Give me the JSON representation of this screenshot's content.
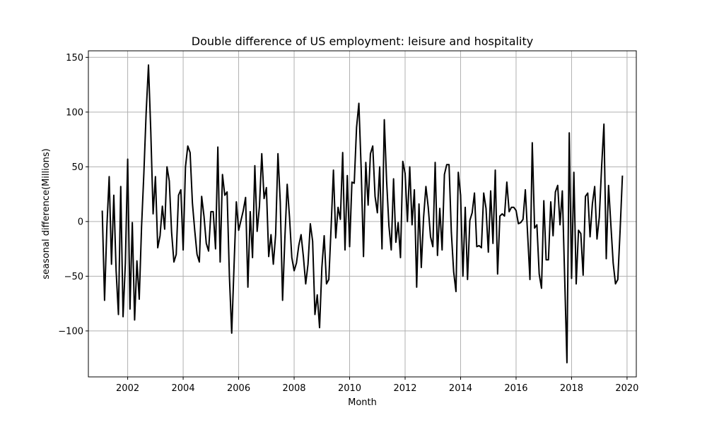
{
  "chart_data": {
    "type": "line",
    "title": "Double difference of US employment: leisure and hospitality",
    "xlabel": "Month",
    "ylabel": "seasonal difference(Millions)",
    "xlim": [
      "2000-08-01",
      "2020-05-01"
    ],
    "ylim": [
      -142,
      156
    ],
    "x_ticks": [
      "2002",
      "2004",
      "2006",
      "2008",
      "2010",
      "2012",
      "2014",
      "2016",
      "2018",
      "2020"
    ],
    "y_ticks": [
      150,
      100,
      50,
      0,
      -50,
      -100
    ],
    "grid": true,
    "line_color": "#000000",
    "series": [
      {
        "x_start": "2001-02",
        "x_step": "1 month",
        "values": [
          10,
          -72,
          -5,
          41,
          -39,
          24,
          -45,
          -85,
          32,
          -87,
          -38,
          57,
          -80,
          -1,
          -90,
          -36,
          -71,
          -5,
          44,
          100,
          143,
          82,
          7,
          41,
          -24,
          -13,
          14,
          -7,
          50,
          37,
          -10,
          -37,
          -30,
          24,
          29,
          -26,
          50,
          69,
          63,
          17,
          -8,
          -30,
          -37,
          23,
          5,
          -20,
          -27,
          9,
          9,
          -25,
          68,
          -37,
          43,
          24,
          27,
          -50,
          -102,
          -41,
          18,
          -8,
          1,
          10,
          22,
          -60,
          9,
          -33,
          51,
          -9,
          14,
          62,
          21,
          31,
          -32,
          -12,
          -39,
          -12,
          62,
          18,
          -72,
          -15,
          34,
          4,
          -33,
          -45,
          -38,
          -22,
          -12,
          -32,
          -57,
          -39,
          -2,
          -18,
          -85,
          -67,
          -97,
          -42,
          -13,
          -57,
          -53,
          -5,
          47,
          -15,
          13,
          2,
          63,
          -26,
          42,
          -23,
          36,
          35,
          86,
          108,
          48,
          -32,
          54,
          15,
          62,
          69,
          23,
          8,
          50,
          -25,
          93,
          37,
          -4,
          -26,
          39,
          -19,
          -1,
          -33,
          55,
          44,
          0,
          50,
          -3,
          29,
          -60,
          16,
          -42,
          4,
          32,
          13,
          -14,
          -23,
          54,
          -31,
          12,
          -26,
          43,
          52,
          52,
          -10,
          -46,
          -64,
          45,
          24,
          -50,
          13,
          -53,
          1,
          8,
          26,
          -23,
          -22,
          -24,
          26,
          12,
          -28,
          28,
          -20,
          47,
          -48,
          5,
          7,
          5,
          36,
          9,
          13,
          13,
          10,
          -2,
          -1,
          2,
          29,
          -12,
          -53,
          72,
          -6,
          -3,
          -48,
          -61,
          19,
          -35,
          -35,
          18,
          -13,
          27,
          33,
          -3,
          28,
          -50,
          -129,
          81,
          -52,
          45,
          -57,
          -8,
          -11,
          -49,
          23,
          26,
          -14,
          16,
          32,
          -16,
          4,
          50,
          89,
          -34,
          33,
          -3,
          -38,
          -57,
          -53,
          -8,
          42
        ]
      }
    ]
  }
}
